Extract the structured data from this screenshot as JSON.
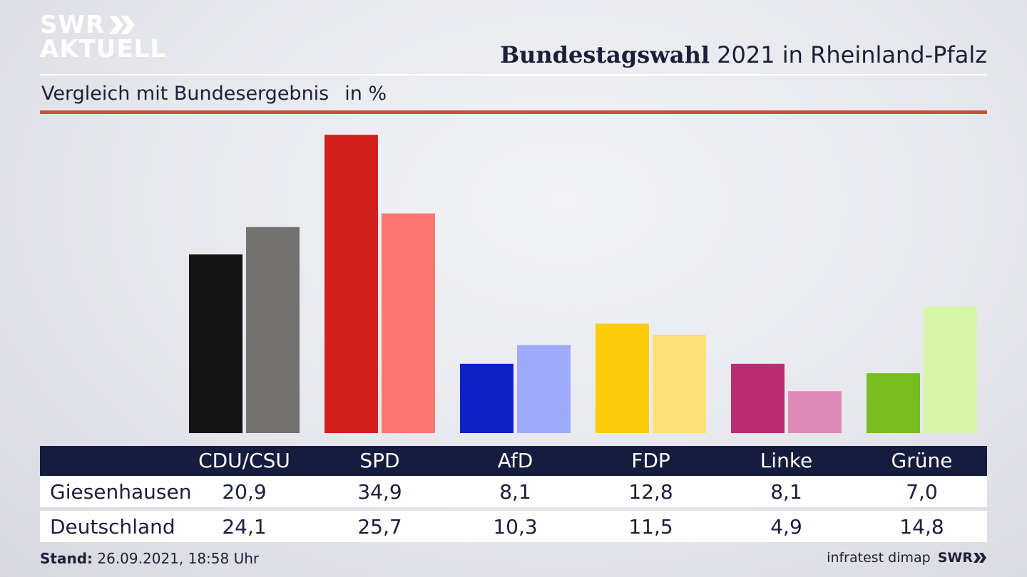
{
  "logo": {
    "line1": "SWR",
    "line2": "AKTUELL"
  },
  "header": {
    "title_bold": "Bundestagswahl",
    "title_rest": "2021 in Rheinland-Pfalz",
    "subtitle": "Vergleich mit Bundesergebnis",
    "unit": "in %"
  },
  "colors": {
    "rule_red": "#d44a3b",
    "table_header": "#151c3d"
  },
  "chart_data": {
    "type": "bar",
    "categories": [
      "CDU/CSU",
      "SPD",
      "AfD",
      "FDP",
      "Linke",
      "Grüne"
    ],
    "series": [
      {
        "name": "Giesenhausen",
        "values": [
          20.9,
          34.9,
          8.1,
          12.8,
          8.1,
          7.0
        ],
        "labels": [
          "20,9",
          "34,9",
          "8,1",
          "12,8",
          "8,1",
          "7,0"
        ],
        "colors": [
          "#141414",
          "#d41f1f",
          "#0a22c6",
          "#fdcb0a",
          "#bb2d73",
          "#77bd20"
        ]
      },
      {
        "name": "Deutschland",
        "values": [
          24.1,
          25.7,
          10.3,
          11.5,
          4.9,
          14.8
        ],
        "labels": [
          "24,1",
          "25,7",
          "10,3",
          "11,5",
          "4,9",
          "14,8"
        ],
        "colors": [
          "#737270",
          "#fe7670",
          "#9eaafe",
          "#fde074",
          "#df8ab8",
          "#d5f6a8"
        ]
      }
    ],
    "ylim": [
      0,
      35
    ],
    "grid": false,
    "legend": "table-below"
  },
  "footer": {
    "stand_label": "Stand:",
    "stand_value": "26.09.2021, 18:58 Uhr",
    "source": "infratest dimap",
    "brand": "SWR"
  }
}
